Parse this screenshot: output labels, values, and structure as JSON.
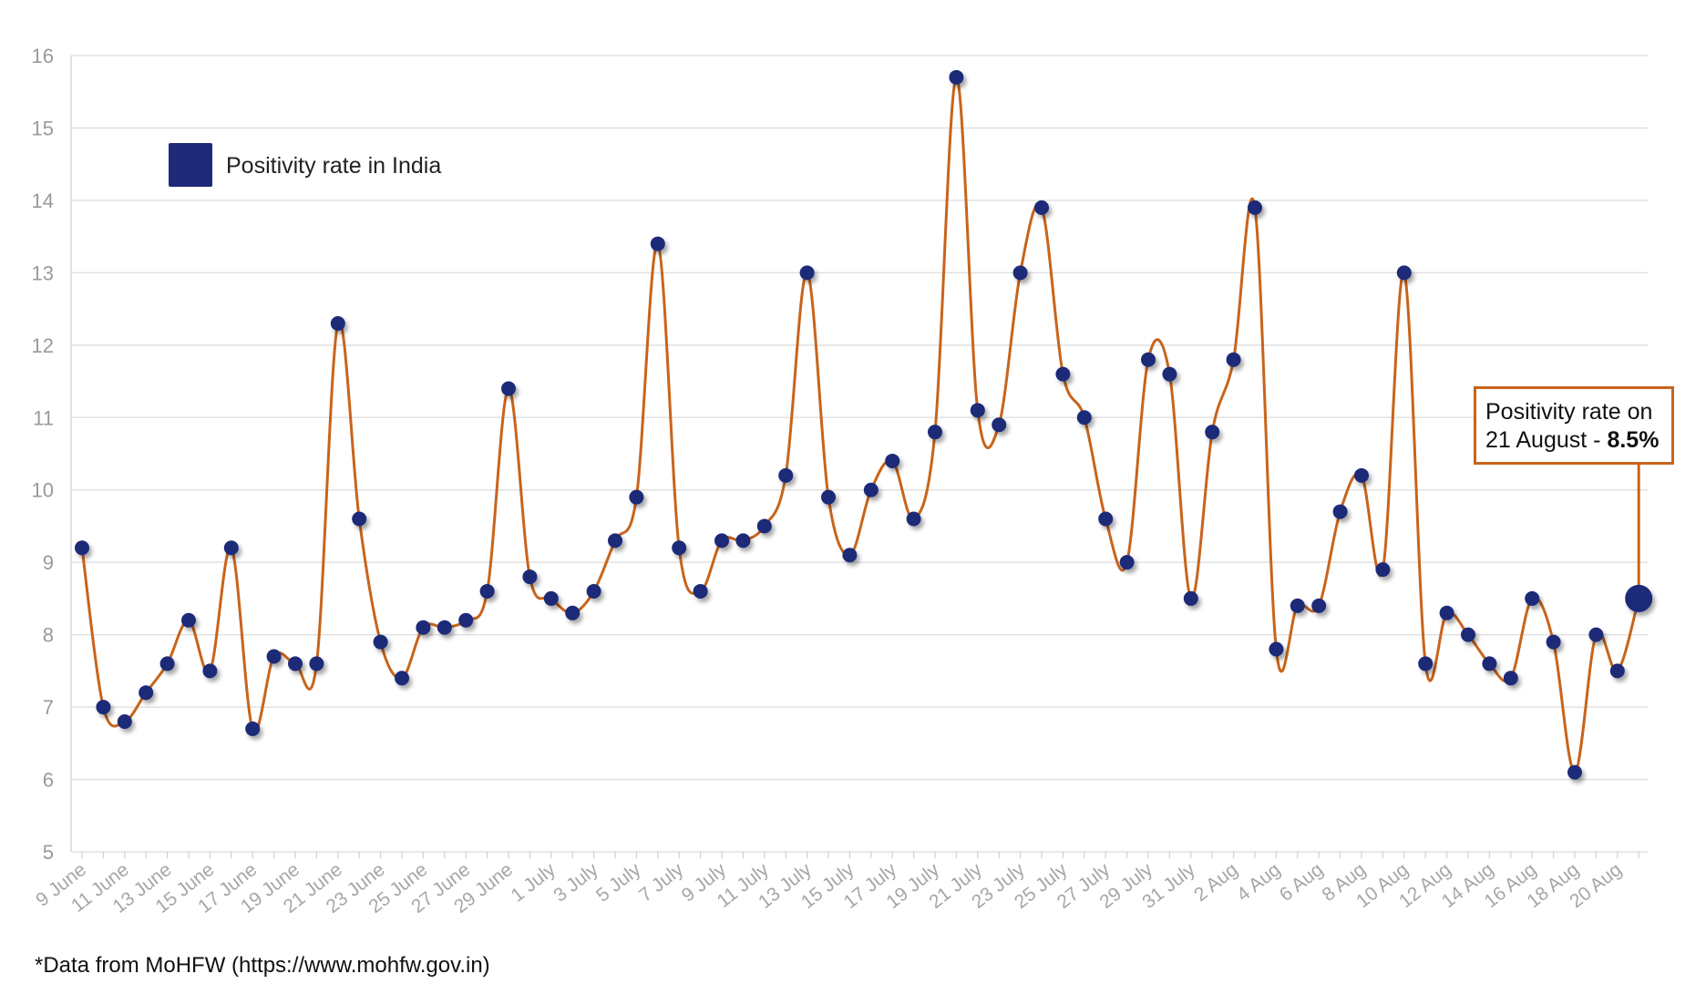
{
  "chart_data": {
    "type": "line",
    "ylim": [
      5,
      16
    ],
    "y_ticks": [
      5,
      6,
      7,
      8,
      9,
      10,
      11,
      12,
      13,
      14,
      15,
      16
    ],
    "grid": "horizontal",
    "legend": {
      "label": "Positivity rate in India",
      "position": "top-left"
    },
    "series": [
      {
        "name": "Positivity rate in India",
        "line_color": "#c8641a",
        "marker_color": "#1f2a78",
        "x": [
          "9 June",
          "10 June",
          "11 June",
          "12 June",
          "13 June",
          "14 June",
          "15 June",
          "16 June",
          "17 June",
          "18 June",
          "19 June",
          "20 June",
          "21 June",
          "22 June",
          "23 June",
          "24 June",
          "25 June",
          "26 June",
          "27 June",
          "28 June",
          "29 June",
          "30 June",
          "1 July",
          "2 July",
          "3 July",
          "4 July",
          "5 July",
          "6 July",
          "7 July",
          "8 July",
          "9 July",
          "10 July",
          "11 July",
          "12 July",
          "13 July",
          "14 July",
          "15 July",
          "16 July",
          "17 July",
          "18 July",
          "19 July",
          "20 July",
          "21 July",
          "22 July",
          "23 July",
          "24 July",
          "25 July",
          "26 July",
          "27 July",
          "28 July",
          "29 July",
          "30 July",
          "31 July",
          "1 Aug",
          "2 Aug",
          "3 Aug",
          "4 Aug",
          "5 Aug",
          "6 Aug",
          "7 Aug",
          "8 Aug",
          "9 Aug",
          "10 Aug",
          "11 Aug",
          "12 Aug",
          "13 Aug",
          "14 Aug",
          "15 Aug",
          "16 Aug",
          "17 Aug",
          "18 Aug",
          "19 Aug",
          "20 Aug",
          "21 Aug"
        ],
        "values": [
          9.2,
          7.0,
          6.8,
          7.2,
          7.6,
          8.2,
          7.5,
          9.2,
          6.7,
          7.7,
          7.6,
          7.6,
          12.3,
          9.6,
          7.9,
          7.4,
          8.1,
          8.1,
          8.2,
          8.6,
          11.4,
          8.8,
          8.5,
          8.3,
          8.6,
          9.3,
          9.9,
          13.4,
          9.2,
          8.6,
          9.3,
          9.3,
          9.5,
          10.2,
          13.0,
          9.9,
          9.1,
          10.0,
          10.4,
          9.6,
          10.8,
          15.7,
          11.1,
          10.9,
          13.0,
          13.9,
          11.6,
          11.0,
          9.6,
          9.0,
          11.8,
          11.6,
          8.5,
          10.8,
          11.8,
          13.9,
          7.8,
          8.4,
          8.4,
          9.7,
          10.2,
          8.9,
          13.0,
          7.6,
          8.3,
          8.0,
          7.6,
          7.4,
          8.5,
          7.9,
          6.1,
          8.0,
          7.5,
          8.5
        ]
      }
    ],
    "x_tick_labels": [
      "9 June",
      "11 June",
      "13 June",
      "15 June",
      "17 June",
      "19 June",
      "21 June",
      "23 June",
      "25 June",
      "27 June",
      "29 June",
      "1 July",
      "3 July",
      "5 July",
      "7 July",
      "9 July",
      "11 July",
      "13 July",
      "15 July",
      "17 July",
      "19 July",
      "21 July",
      "23 July",
      "25 July",
      "27 July",
      "29 July",
      "31 July",
      "2 Aug",
      "4 Aug",
      "6 Aug",
      "8 Aug",
      "10 Aug",
      "12 Aug",
      "14 Aug",
      "16 Aug",
      "18 Aug",
      "20 Aug"
    ],
    "annotation": {
      "line1": "Positivity rate on",
      "line2_prefix": "21 August - ",
      "line2_value": "8.5%"
    }
  },
  "footer": {
    "source_note": "*Data from MoHFW (https://www.mohfw.gov.in)"
  }
}
